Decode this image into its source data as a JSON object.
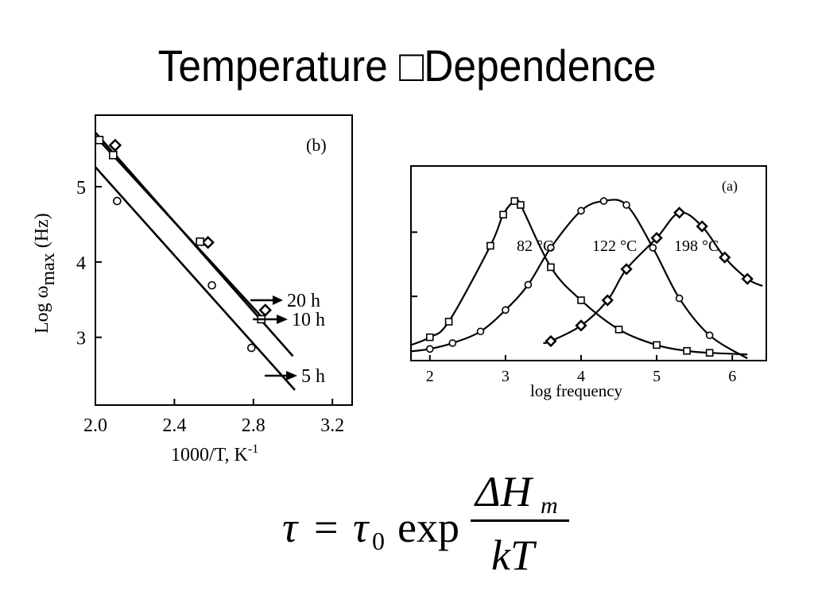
{
  "slide": {
    "title": "Temperature □Dependence"
  },
  "chart_data": [
    {
      "type": "line",
      "panel_label": "(b)",
      "xlabel": "1000/T,  K",
      "xlabel_sup": "-1",
      "ylabel_pre": "Log ω",
      "ylabel_sub": "max",
      "ylabel_post": " (Hz)",
      "xlim": [
        2.0,
        3.3
      ],
      "ylim": [
        2.1,
        5.95
      ],
      "xticks": [
        2.0,
        2.4,
        2.8,
        3.2
      ],
      "xtick_labels": [
        "2.0",
        "2.4",
        "2.8",
        "3.2"
      ],
      "yticks": [
        3,
        4,
        5
      ],
      "ytick_labels": [
        "3",
        "4",
        "5"
      ],
      "series": [
        {
          "name": "20 h",
          "marker": "diamond",
          "line": [
            [
              2.0,
              5.72
            ],
            [
              3.0,
              2.75
            ]
          ],
          "x": [
            2.1,
            2.57,
            2.86
          ],
          "y": [
            5.55,
            4.26,
            3.36
          ]
        },
        {
          "name": "10 h",
          "marker": "square",
          "line": [
            [
              2.0,
              5.67
            ],
            [
              2.86,
              3.22
            ]
          ],
          "x": [
            2.02,
            2.09,
            2.53,
            2.84
          ],
          "y": [
            5.62,
            5.42,
            4.27,
            3.24
          ]
        },
        {
          "name": "5 h",
          "marker": "circle",
          "line": [
            [
              2.0,
              5.26
            ],
            [
              3.01,
              2.3
            ]
          ],
          "x": [
            2.11,
            2.59,
            2.79
          ],
          "y": [
            4.81,
            3.69,
            2.86
          ]
        }
      ],
      "annotations": [
        "20 h",
        "10 h",
        "5 h"
      ]
    },
    {
      "type": "line",
      "panel_label": "(a)",
      "xlabel": "log frequency",
      "xlim": [
        1.75,
        6.45
      ],
      "ylim": [
        0,
        1
      ],
      "xticks": [
        2,
        3,
        4,
        5,
        6
      ],
      "xtick_labels": [
        "2",
        "3",
        "4",
        "5",
        "6"
      ],
      "series": [
        {
          "name": "82 °C",
          "marker": "square",
          "x": [
            2.0,
            2.25,
            2.8,
            2.97,
            3.12,
            3.2,
            3.6,
            4.0,
            4.5,
            5.0,
            5.4,
            5.7
          ],
          "y": [
            0.12,
            0.2,
            0.59,
            0.75,
            0.82,
            0.8,
            0.48,
            0.31,
            0.16,
            0.08,
            0.05,
            0.04
          ]
        },
        {
          "name": "122 °C",
          "marker": "circle",
          "x": [
            2.0,
            2.3,
            2.67,
            3.0,
            3.3,
            3.6,
            4.0,
            4.3,
            4.6,
            4.95,
            5.3,
            5.7
          ],
          "y": [
            0.06,
            0.09,
            0.15,
            0.26,
            0.39,
            0.58,
            0.77,
            0.82,
            0.8,
            0.58,
            0.32,
            0.13
          ]
        },
        {
          "name": "198  °C",
          "marker": "diamond",
          "x": [
            3.6,
            4.0,
            4.35,
            4.6,
            5.0,
            5.3,
            5.6,
            5.9,
            6.2
          ],
          "y": [
            0.1,
            0.18,
            0.31,
            0.47,
            0.63,
            0.76,
            0.69,
            0.53,
            0.42
          ]
        }
      ],
      "annotations": [
        "82 °C",
        "122 °C",
        "198  °C"
      ]
    }
  ],
  "formula": {
    "lhs": "τ",
    "eq": "=",
    "tau": "τ",
    "tau_sub": "0",
    "exp": "exp",
    "numerator": "ΔH",
    "numerator_sub": "m",
    "denominator": "kT"
  }
}
